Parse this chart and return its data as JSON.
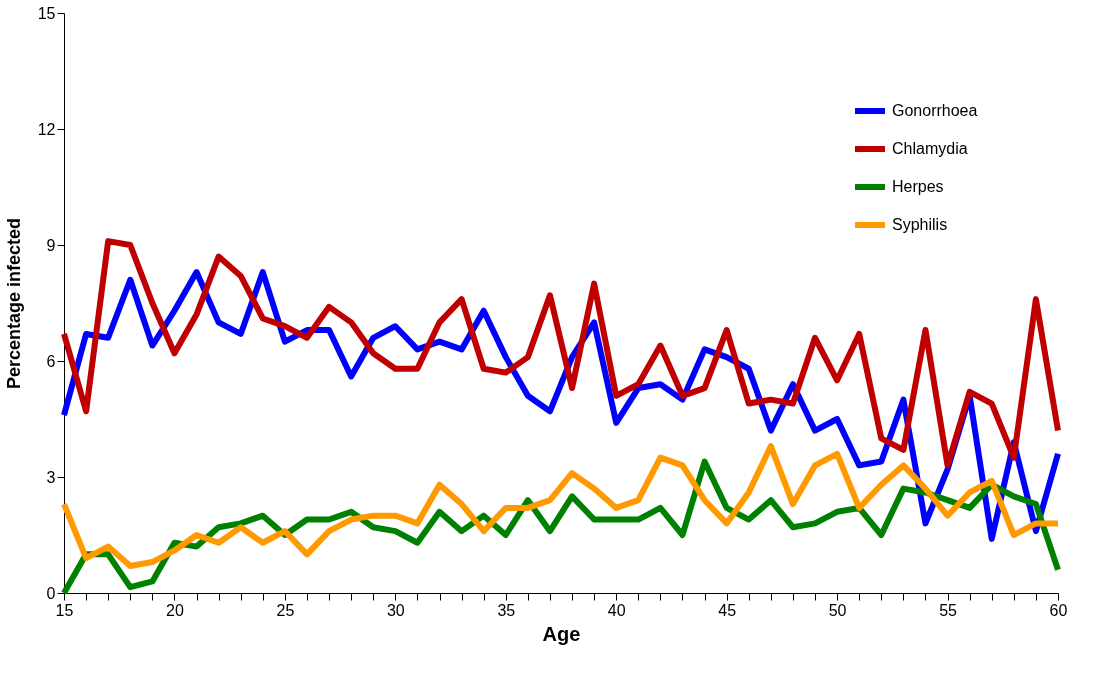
{
  "chart_data": {
    "type": "line",
    "xlabel": "Age",
    "ylabel": "Percentage infected",
    "x": [
      15,
      16,
      17,
      18,
      19,
      20,
      21,
      22,
      23,
      24,
      25,
      26,
      27,
      28,
      29,
      30,
      31,
      32,
      33,
      34,
      35,
      36,
      37,
      38,
      39,
      40,
      41,
      42,
      43,
      44,
      45,
      46,
      47,
      48,
      49,
      50,
      51,
      52,
      53,
      54,
      55,
      56,
      57,
      58,
      59,
      60
    ],
    "series": [
      {
        "name": "Gonorrhoea",
        "color": "#0000ff",
        "values": [
          4.6,
          6.7,
          6.6,
          8.1,
          6.4,
          7.3,
          8.3,
          7.0,
          6.7,
          8.3,
          6.5,
          6.8,
          6.8,
          5.6,
          6.6,
          6.9,
          6.3,
          6.5,
          6.3,
          7.3,
          6.1,
          5.1,
          4.7,
          6.1,
          7.0,
          4.4,
          5.3,
          5.4,
          5.0,
          6.3,
          6.1,
          5.8,
          4.2,
          5.4,
          4.2,
          4.5,
          3.3,
          3.4,
          5.0,
          1.8,
          3.2,
          5.1,
          1.4,
          3.9,
          1.6,
          3.6
        ]
      },
      {
        "name": "Chlamydia",
        "color": "#c00000",
        "values": [
          6.7,
          4.7,
          9.1,
          9.0,
          7.5,
          6.2,
          7.2,
          8.7,
          8.2,
          7.1,
          6.9,
          6.6,
          7.4,
          7.0,
          6.2,
          5.8,
          5.8,
          7.0,
          7.6,
          5.8,
          5.7,
          6.1,
          7.7,
          5.3,
          8.0,
          5.1,
          5.4,
          6.4,
          5.1,
          5.3,
          6.8,
          4.9,
          5.0,
          4.9,
          6.6,
          5.5,
          6.7,
          4.0,
          3.7,
          6.8,
          3.3,
          5.2,
          4.9,
          3.5,
          7.6,
          4.2
        ]
      },
      {
        "name": "Herpes",
        "color": "#008000",
        "values": [
          0.0,
          1.0,
          1.0,
          0.15,
          0.3,
          1.3,
          1.2,
          1.7,
          1.8,
          2.0,
          1.5,
          1.9,
          1.9,
          2.1,
          1.7,
          1.6,
          1.3,
          2.1,
          1.6,
          2.0,
          1.5,
          2.4,
          1.6,
          2.5,
          1.9,
          1.9,
          1.9,
          2.2,
          1.5,
          3.4,
          2.2,
          1.9,
          2.4,
          1.7,
          1.8,
          2.1,
          2.2,
          1.5,
          2.7,
          2.6,
          2.4,
          2.2,
          2.8,
          2.5,
          2.3,
          0.6
        ]
      },
      {
        "name": "Syphilis",
        "color": "#ff9900",
        "values": [
          2.3,
          0.9,
          1.2,
          0.7,
          0.8,
          1.1,
          1.5,
          1.3,
          1.7,
          1.3,
          1.6,
          1.0,
          1.6,
          1.9,
          2.0,
          2.0,
          1.8,
          2.8,
          2.3,
          1.6,
          2.2,
          2.2,
          2.4,
          3.1,
          2.7,
          2.2,
          2.4,
          3.5,
          3.3,
          2.4,
          1.8,
          2.6,
          3.8,
          2.3,
          3.3,
          3.6,
          2.2,
          2.8,
          3.3,
          2.7,
          2.0,
          2.6,
          2.9,
          1.5,
          1.8,
          1.8
        ]
      }
    ],
    "xlim": [
      15,
      60
    ],
    "xticks": [
      15,
      {
        "value": 16,
        "label": null
      },
      {
        "value": 17,
        "label": null
      },
      {
        "value": 18,
        "label": null
      },
      {
        "value": 19,
        "label": null
      },
      20,
      {
        "value": 21,
        "label": null
      },
      {
        "value": 22,
        "label": null
      },
      {
        "value": 23,
        "label": null
      },
      {
        "value": 24,
        "label": null
      },
      25,
      {
        "value": 26,
        "label": null
      },
      {
        "value": 27,
        "label": null
      },
      {
        "value": 28,
        "label": null
      },
      {
        "value": 29,
        "label": null
      },
      30,
      {
        "value": 31,
        "label": null
      },
      {
        "value": 32,
        "label": null
      },
      {
        "value": 33,
        "label": null
      },
      {
        "value": 34,
        "label": null
      },
      35,
      {
        "value": 36,
        "label": null
      },
      {
        "value": 37,
        "label": null
      },
      {
        "value": 38,
        "label": null
      },
      {
        "value": 39,
        "label": null
      },
      40,
      {
        "value": 41,
        "label": null
      },
      {
        "value": 42,
        "label": null
      },
      {
        "value": 43,
        "label": null
      },
      {
        "value": 44,
        "label": null
      },
      45,
      {
        "value": 46,
        "label": null
      },
      {
        "value": 47,
        "label": null
      },
      {
        "value": 48,
        "label": null
      },
      {
        "value": 49,
        "label": null
      },
      50,
      {
        "value": 51,
        "label": null
      },
      {
        "value": 52,
        "label": null
      },
      {
        "value": 53,
        "label": null
      },
      {
        "value": 54,
        "label": null
      },
      55,
      {
        "value": 56,
        "label": null
      },
      {
        "value": 57,
        "label": null
      },
      {
        "value": 58,
        "label": null
      },
      {
        "value": 59,
        "label": null
      },
      60
    ],
    "ylim": [
      0,
      15
    ],
    "yticks": [
      0,
      3,
      6,
      9,
      12,
      15
    ],
    "grid": false,
    "legend": "top right",
    "marker": "none",
    "line_style": "solid"
  }
}
